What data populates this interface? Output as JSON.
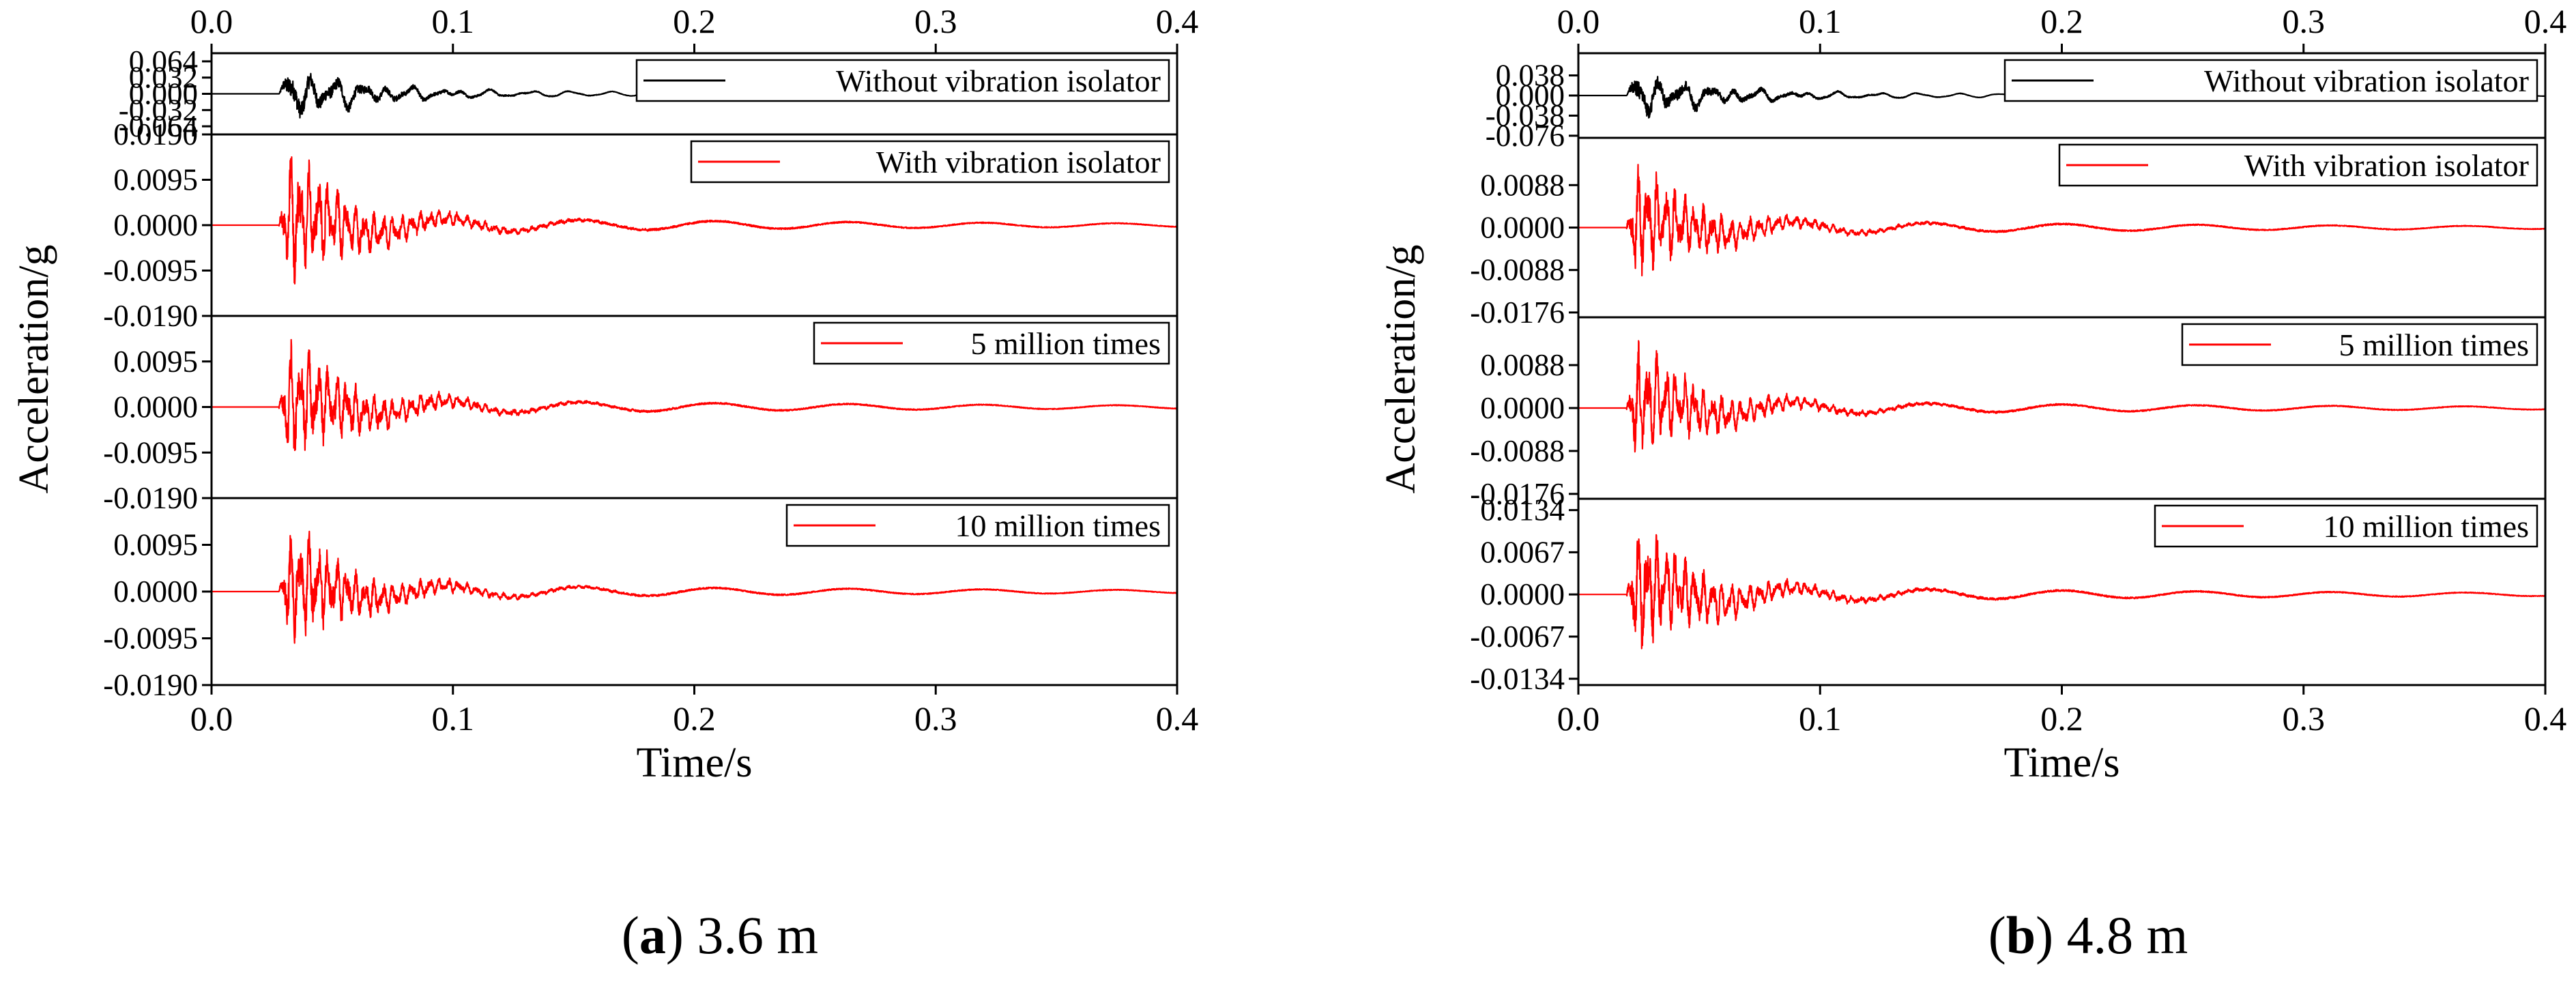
{
  "chart_data": [
    {
      "type": "line",
      "panel_label": "a",
      "caption": "3.6 m",
      "xlabel": "Time/s",
      "ylabel": "Acceleration/g",
      "xlim": [
        0.0,
        0.4
      ],
      "x_ticks": [
        "0.0",
        "0.1",
        "0.2",
        "0.3",
        "0.4"
      ],
      "signal": {
        "sample_rate_hz": 10000,
        "onset_s": 0.028,
        "record_end_s": 0.4
      },
      "subplots": [
        {
          "legend": "Without vibration isolator",
          "color": "#000000",
          "ylim": [
            -0.08,
            0.08
          ],
          "y_ticks": [
            "0.064",
            "0.032",
            "0.000",
            "-0.032",
            "-0.064"
          ],
          "y_tick_values": [
            0.064,
            0.032,
            0.0,
            -0.032,
            -0.064
          ],
          "peak_amplitude": 0.06,
          "record_end_s": 0.385
        },
        {
          "legend": "With vibration isolator",
          "color": "#ff0000",
          "ylim": [
            -0.019,
            0.019
          ],
          "y_ticks": [
            "0.0190",
            "0.0095",
            "0.0000",
            "-0.0095",
            "-0.0190"
          ],
          "y_tick_values": [
            0.019,
            0.0095,
            0.0,
            -0.0095,
            -0.019
          ],
          "peak_amplitude": 0.016
        },
        {
          "legend": "5 million times",
          "color": "#ff0000",
          "ylim": [
            -0.019,
            0.019
          ],
          "y_ticks": [
            "0.0095",
            "0.0000",
            "-0.0095",
            "-0.0190"
          ],
          "y_tick_values": [
            0.0095,
            0.0,
            -0.0095,
            -0.019
          ],
          "peak_amplitude": 0.015
        },
        {
          "legend": "10 million times",
          "color": "#ff0000",
          "ylim": [
            -0.019,
            0.019
          ],
          "y_ticks": [
            "0.0095",
            "0.0000",
            "-0.0095",
            "-0.0190"
          ],
          "y_tick_values": [
            0.0095,
            0.0,
            -0.0095,
            -0.019
          ],
          "peak_amplitude": 0.014
        }
      ]
    },
    {
      "type": "line",
      "panel_label": "b",
      "caption": "4.8 m",
      "xlabel": "Time/s",
      "ylabel": "Acceleration/g",
      "xlim": [
        0.0,
        0.4
      ],
      "x_ticks": [
        "0.0",
        "0.1",
        "0.2",
        "0.3",
        "0.4"
      ],
      "signal": {
        "sample_rate_hz": 10000,
        "onset_s": 0.02,
        "record_end_s": 0.4
      },
      "subplots": [
        {
          "legend": "Without vibration isolator",
          "color": "#000000",
          "ylim": [
            -0.08,
            0.08
          ],
          "y_ticks": [
            "0.038",
            "0.000",
            "-0.038",
            "-0.076"
          ],
          "y_tick_values": [
            0.038,
            0.0,
            -0.038,
            -0.076
          ],
          "peak_amplitude": 0.052
        },
        {
          "legend": "With vibration isolator",
          "color": "#ff0000",
          "ylim": [
            -0.0186,
            0.0186
          ],
          "y_ticks": [
            "0.0088",
            "0.0000",
            "-0.0088",
            "-0.0176"
          ],
          "y_tick_values": [
            0.0088,
            0.0,
            -0.0088,
            -0.0176
          ],
          "peak_amplitude": 0.014
        },
        {
          "legend": "5 million times",
          "color": "#ff0000",
          "ylim": [
            -0.0186,
            0.0186
          ],
          "y_ticks": [
            "0.0088",
            "0.0000",
            "-0.0088",
            "-0.0176"
          ],
          "y_tick_values": [
            0.0088,
            0.0,
            -0.0088,
            -0.0176
          ],
          "peak_amplitude": 0.014
        },
        {
          "legend": "10 million times",
          "color": "#ff0000",
          "ylim": [
            -0.0144,
            0.0152
          ],
          "y_ticks": [
            "0.0134",
            "0.0067",
            "0.0000",
            "-0.0067",
            "-0.0134"
          ],
          "y_tick_values": [
            0.0134,
            0.0067,
            0.0,
            -0.0067,
            -0.0134
          ],
          "peak_amplitude": 0.012
        }
      ]
    }
  ]
}
